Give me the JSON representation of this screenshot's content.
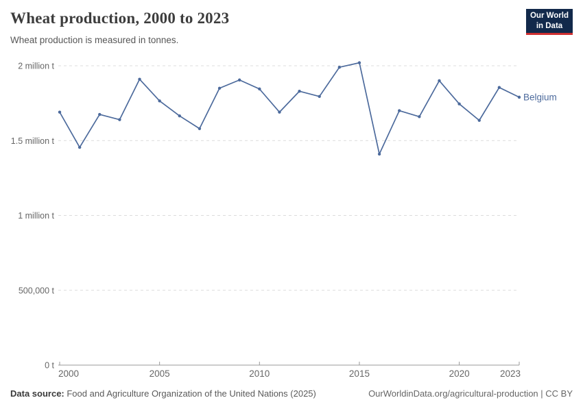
{
  "header": {
    "title": "Wheat production, 2000 to 2023",
    "subtitle": "Wheat production is measured in tonnes.",
    "logo": {
      "line1": "Our World",
      "line2": "in Data"
    }
  },
  "chart_data": {
    "type": "line",
    "title": "Wheat production, 2000 to 2023",
    "unit": "tonnes",
    "xlim": [
      2000,
      2023
    ],
    "ylim": [
      0,
      2000000
    ],
    "grid": "horizontal-dashed",
    "legend_position": "end-of-line",
    "x_ticks": [
      2000,
      2005,
      2010,
      2015,
      2020,
      2023
    ],
    "y_ticks": [
      {
        "value": 0,
        "label": "0 t"
      },
      {
        "value": 500000,
        "label": "500,000 t"
      },
      {
        "value": 1000000,
        "label": "1 million t"
      },
      {
        "value": 1500000,
        "label": "1.5 million t"
      },
      {
        "value": 2000000,
        "label": "2 million t"
      }
    ],
    "series": [
      {
        "name": "Belgium",
        "color": "#4C6A9C",
        "x": [
          2000,
          2001,
          2002,
          2003,
          2004,
          2005,
          2006,
          2007,
          2008,
          2009,
          2010,
          2011,
          2012,
          2013,
          2014,
          2015,
          2016,
          2017,
          2018,
          2019,
          2020,
          2021,
          2022,
          2023
        ],
        "values": [
          1690000,
          1455000,
          1675000,
          1640000,
          1910000,
          1765000,
          1665000,
          1580000,
          1850000,
          1905000,
          1845000,
          1690000,
          1830000,
          1795000,
          1990000,
          2020000,
          1410000,
          1700000,
          1660000,
          1900000,
          1745000,
          1635000,
          1855000,
          1790000
        ]
      }
    ]
  },
  "footer": {
    "source_label": "Data source:",
    "source_text": " Food and Agriculture Organization of the United Nations (2025)",
    "attribution": "OurWorldinData.org/agricultural-production | CC BY"
  },
  "colors": {
    "line": "#4C6A9C",
    "grid": "#dcdcdc",
    "axis": "#999999",
    "tick_label": "#666666",
    "logo_bg": "#12294b",
    "logo_red": "#cf3031"
  }
}
